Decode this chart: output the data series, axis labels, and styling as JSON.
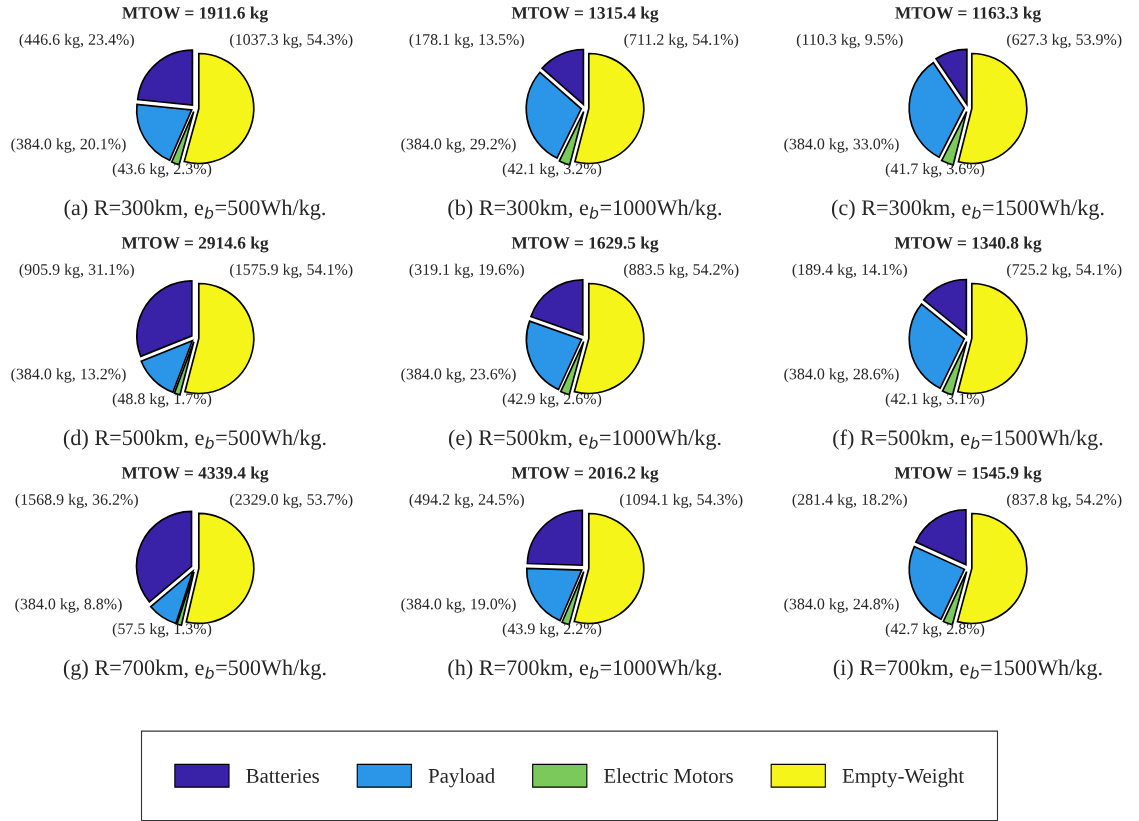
{
  "chart_data": [
    {
      "type": "pie",
      "title": "MTOW = 1911.6 kg",
      "xlabel": "(a) R=300km, e$_{b}$=500Wh/kg.",
      "categories": [
        "Batteries",
        "Payload",
        "Electric Motors",
        "Empty-Weight"
      ],
      "values": [
        446.6,
        384.0,
        43.6,
        1037.3
      ],
      "value_labels": [
        "(446.6 kg, 23.4%)",
        "(384.0 kg, 20.1%)",
        "(43.6 kg, 2.3%)",
        "(1037.3 kg, 54.3%)"
      ],
      "colors": [
        "#3a22a8",
        "#2b96e8",
        "#7ac95a",
        "#f5f51a"
      ],
      "legend": "bottom"
    },
    {
      "type": "pie",
      "title": "MTOW = 1315.4 kg",
      "xlabel": "(b) R=300km, e$_{b}$=1000Wh/kg.",
      "categories": [
        null,
        null,
        null,
        null
      ],
      "values": [
        178.1,
        384.0,
        42.1,
        711.2
      ],
      "value_labels": [
        "(178.1 kg, 13.5%)",
        "(384.0 kg, 29.2%)",
        "(42.1 kg, 3.2%)",
        "(711.2 kg, 54.1%)"
      ],
      "colors": [
        "#3a22a8",
        "#2b96e8",
        "#7ac95a",
        "#f5f51a"
      ]
    },
    {
      "type": "pie",
      "title": "MTOW = 1163.3 kg",
      "xlabel": "(c) R=300km, e$_{b}$=1500Wh/kg.",
      "categories": [
        null,
        null,
        null,
        null
      ],
      "values": [
        110.3,
        384.0,
        41.7,
        627.3
      ],
      "value_labels": [
        "(110.3 kg, 9.5%)",
        "(384.0 kg, 33.0%)",
        "(41.7 kg, 3.6%)",
        "(627.3 kg, 53.9%)"
      ],
      "colors": [
        "#3a22a8",
        "#2b96e8",
        "#7ac95a",
        "#f5f51a"
      ]
    },
    {
      "type": "pie",
      "title": "MTOW = 2914.6 kg",
      "xlabel": "(d) R=500km, e$_{b}$=500Wh/kg.",
      "categories": [
        null,
        null,
        null,
        null
      ],
      "values": [
        905.9,
        384.0,
        48.8,
        1575.9
      ],
      "value_labels": [
        "(905.9 kg, 31.1%)",
        "(384.0 kg, 13.2%)",
        "(48.8 kg, 1.7%)",
        "(1575.9 kg, 54.1%)"
      ],
      "colors": [
        "#3a22a8",
        "#2b96e8",
        "#7ac95a",
        "#f5f51a"
      ]
    },
    {
      "type": "pie",
      "title": "MTOW = 1629.5 kg",
      "xlabel": "(e) R=500km, e$_{b}$=1000Wh/kg.",
      "categories": [
        null,
        null,
        null,
        null
      ],
      "values": [
        319.1,
        384.0,
        42.9,
        883.5
      ],
      "value_labels": [
        "(319.1 kg, 19.6%)",
        "(384.0 kg, 23.6%)",
        "(42.9 kg, 2.6%)",
        "(883.5 kg, 54.2%)"
      ],
      "colors": [
        "#3a22a8",
        "#2b96e8",
        "#7ac95a",
        "#f5f51a"
      ]
    },
    {
      "type": "pie",
      "title": "MTOW = 1340.8 kg",
      "xlabel": "(f) R=500km, e$_{b}$=1500Wh/kg.",
      "categories": [
        null,
        null,
        null,
        null
      ],
      "values": [
        189.4,
        384.0,
        42.1,
        725.2
      ],
      "value_labels": [
        "(189.4 kg, 14.1%)",
        "(384.0 kg, 28.6%)",
        "(42.1 kg, 3.1%)",
        "(725.2 kg, 54.1%)"
      ],
      "colors": [
        "#3a22a8",
        "#2b96e8",
        "#7ac95a",
        "#f5f51a"
      ]
    },
    {
      "type": "pie",
      "title": "MTOW = 4339.4 kg",
      "xlabel": "(g) R=700km, e$_{b}$=500Wh/kg.",
      "categories": [
        null,
        null,
        null,
        null
      ],
      "values": [
        1568.9,
        384.0,
        57.5,
        2329.0
      ],
      "value_labels": [
        "(1568.9 kg, 36.2%)",
        "(384.0 kg, 8.8%)",
        "(57.5 kg, 1.3%)",
        "(2329.0 kg, 53.7%)"
      ],
      "colors": [
        "#3a22a8",
        "#2b96e8",
        "#7ac95a",
        "#f5f51a"
      ]
    },
    {
      "type": "pie",
      "title": "MTOW = 2016.2 kg",
      "xlabel": "(h) R=700km, e$_{b}$=1000Wh/kg.",
      "categories": [
        null,
        null,
        null,
        null
      ],
      "values": [
        494.2,
        384.0,
        43.9,
        1094.1
      ],
      "value_labels": [
        "(494.2 kg, 24.5%)",
        "(384.0 kg, 19.0%)",
        "(43.9 kg, 2.2%)",
        "(1094.1 kg, 54.3%)"
      ],
      "colors": [
        "#3a22a8",
        "#2b96e8",
        "#7ac95a",
        "#f5f51a"
      ]
    },
    {
      "type": "pie",
      "title": "MTOW = 1545.9 kg",
      "xlabel": "(i) R=700km, e$_{b}$=1500Wh/kg.",
      "categories": [
        null,
        null,
        null,
        null
      ],
      "values": [
        281.4,
        384.0,
        42.7,
        837.8
      ],
      "value_labels": [
        "(281.4 kg, 18.2%)",
        "(384.0 kg, 24.8%)",
        "(42.7 kg, 2.8%)",
        "(837.8 kg, 54.2%)"
      ],
      "colors": [
        "#3a22a8",
        "#2b96e8",
        "#7ac95a",
        "#f5f51a"
      ]
    }
  ]
}
